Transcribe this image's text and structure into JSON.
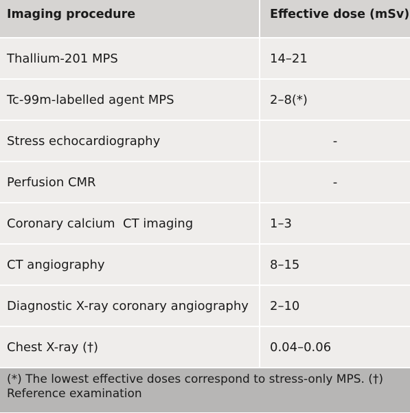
{
  "header": {
    "procedure": "Imaging procedure",
    "dose": "Effective dose (mSv)"
  },
  "rows": [
    {
      "procedure": "Thallium-201 MPS",
      "dose": "14–21"
    },
    {
      "procedure": "Tc-99m-labelled agent MPS",
      "dose": "2–8(*)"
    },
    {
      "procedure": "Stress echocardiography",
      "dose": "-"
    },
    {
      "procedure": "Perfusion CMR",
      "dose": "-"
    },
    {
      "procedure": "Coronary calcium  CT imaging",
      "dose": "1–3"
    },
    {
      "procedure": "CT angiography",
      "dose": "8–15"
    },
    {
      "procedure": "Diagnostic X-ray coronary angiography",
      "dose": "2–10"
    },
    {
      "procedure": "Chest X-ray (†)",
      "dose": "0.04–0.06"
    }
  ],
  "footnote": "(*) The lowest effective doses correspond to stress-only MPS. (†) Reference examination"
}
